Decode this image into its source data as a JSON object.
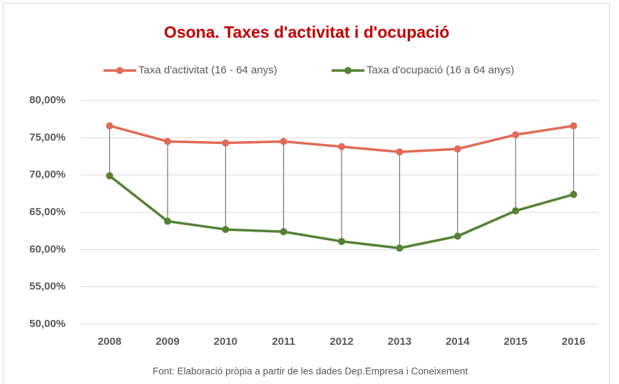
{
  "chart_data": {
    "type": "line",
    "title": "Osona. Taxes d'activitat i d'ocupació",
    "categories": [
      "2008",
      "2009",
      "2010",
      "2011",
      "2012",
      "2013",
      "2014",
      "2015",
      "2016"
    ],
    "series": [
      {
        "name": "Taxa d'activitat (16 - 64 anys)",
        "color": "#e06b56",
        "values": [
          76.6,
          74.5,
          74.3,
          74.5,
          73.8,
          73.1,
          73.5,
          75.4,
          76.6
        ]
      },
      {
        "name": "Taxa d'ocupació (16 a 64 anys)",
        "color": "#548235",
        "values": [
          69.9,
          63.8,
          62.7,
          62.4,
          61.1,
          60.2,
          61.8,
          65.2,
          67.4
        ]
      }
    ],
    "ylim": [
      50,
      80
    ],
    "yticks": [
      {
        "value": 50,
        "label": "50,00%"
      },
      {
        "value": 55,
        "label": "55,00%"
      },
      {
        "value": 60,
        "label": "60,00%"
      },
      {
        "value": 65,
        "label": "65,00%"
      },
      {
        "value": 70,
        "label": "70,00%"
      },
      {
        "value": 75,
        "label": "75,00%"
      },
      {
        "value": 80,
        "label": "80,00%"
      }
    ],
    "grid": true,
    "drop_lines": true,
    "legend": "top",
    "title_color": "#c00000",
    "source": "Font: Elaboració pròpia a partir de les dades Dep.Empresa i Coneixement"
  }
}
